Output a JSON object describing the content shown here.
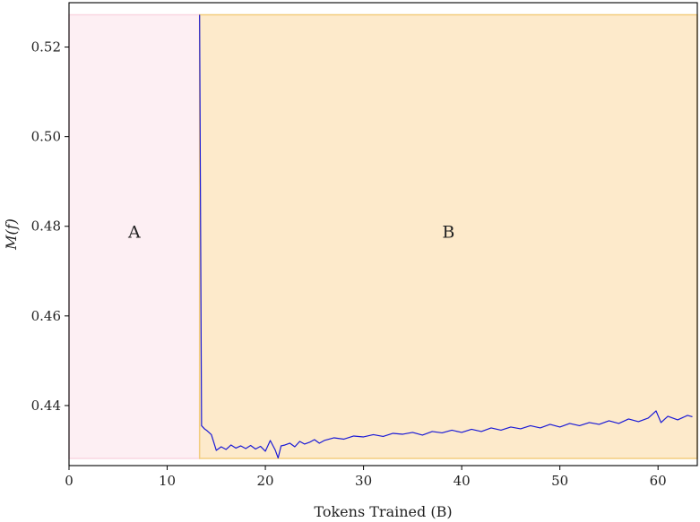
{
  "chart_data": {
    "type": "line",
    "title": "",
    "xlabel": "Tokens Trained (B)",
    "ylabel": "M(f)",
    "xlim": [
      0,
      64
    ],
    "ylim": [
      0.4266,
      0.5299
    ],
    "x_ticks": [
      "0",
      "10",
      "20",
      "30",
      "40",
      "50",
      "60"
    ],
    "y_ticks": [
      "0.44",
      "0.46",
      "0.48",
      "0.50",
      "0.52"
    ],
    "grid": false,
    "regions": [
      {
        "label": "A",
        "x_start": 0,
        "x_end": 13.3,
        "y_start": 0.4282,
        "y_end": 0.5272,
        "color": "#fdeff3",
        "edge": "#f9d7e1"
      },
      {
        "label": "B",
        "x_start": 13.3,
        "x_end": 64,
        "y_start": 0.4282,
        "y_end": 0.5272,
        "color": "#fdeacb",
        "edge": "#f3cd7e"
      }
    ],
    "series": [
      {
        "color": "#1a1ad6",
        "x": [
          13.3,
          13.5,
          13.8,
          14.0,
          14.5,
          15.0,
          15.5,
          16.0,
          16.5,
          17.0,
          17.5,
          18.0,
          18.5,
          19.0,
          19.5,
          20.0,
          20.5,
          21.0,
          21.3,
          21.6,
          22.0,
          22.5,
          23.0,
          23.5,
          24.0,
          24.5,
          25.0,
          25.5,
          26.0,
          27.0,
          28.0,
          29.0,
          30.0,
          31.0,
          32.0,
          33.0,
          34.0,
          35.0,
          36.0,
          37.0,
          38.0,
          39.0,
          40.0,
          41.0,
          42.0,
          43.0,
          44.0,
          45.0,
          46.0,
          47.0,
          48.0,
          49.0,
          50.0,
          51.0,
          52.0,
          53.0,
          54.0,
          55.0,
          56.0,
          57.0,
          58.0,
          59.0,
          59.8,
          60.3,
          61.0,
          62.0,
          63.0,
          63.5
        ],
        "y": [
          0.5272,
          0.4355,
          0.4348,
          0.4345,
          0.4335,
          0.43,
          0.4308,
          0.4302,
          0.4312,
          0.4305,
          0.431,
          0.4304,
          0.4311,
          0.4303,
          0.4309,
          0.4298,
          0.4322,
          0.4301,
          0.4283,
          0.431,
          0.4312,
          0.4316,
          0.4308,
          0.432,
          0.4314,
          0.4318,
          0.4324,
          0.4316,
          0.4322,
          0.4328,
          0.4325,
          0.4332,
          0.433,
          0.4335,
          0.4331,
          0.4338,
          0.4336,
          0.434,
          0.4334,
          0.4342,
          0.4339,
          0.4345,
          0.434,
          0.4347,
          0.4342,
          0.435,
          0.4345,
          0.4352,
          0.4348,
          0.4355,
          0.435,
          0.4358,
          0.4352,
          0.436,
          0.4355,
          0.4362,
          0.4358,
          0.4366,
          0.436,
          0.437,
          0.4364,
          0.4372,
          0.4388,
          0.4362,
          0.4376,
          0.4368,
          0.4378,
          0.4375
        ]
      }
    ]
  }
}
